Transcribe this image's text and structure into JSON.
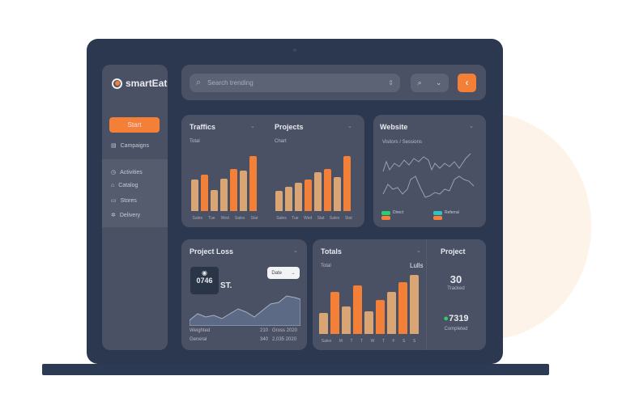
{
  "app": {
    "name": "smartEat"
  },
  "sidebar": {
    "start": "Start",
    "items": [
      {
        "label": "Campaigns",
        "icon": "calendar-icon"
      },
      {
        "label": "Activities",
        "icon": "clock-icon"
      },
      {
        "label": "Catalog",
        "icon": "home-icon"
      },
      {
        "label": "Stores",
        "icon": "store-icon"
      },
      {
        "label": "Delivery",
        "icon": "settings-icon"
      }
    ]
  },
  "topbar": {
    "search_placeholder": "Search trending"
  },
  "cards": {
    "traffic": {
      "title": "Traffics",
      "sub": "Total",
      "ticks": [
        "Sales",
        "Tue",
        "Wed",
        "Sales",
        "Stat"
      ],
      "values": [
        100,
        117,
        68,
        103,
        134,
        128,
        176
      ],
      "hi": [
        false,
        true,
        false,
        false,
        true,
        false,
        true
      ]
    },
    "projects": {
      "title": "Projects",
      "sub": "Chart",
      "ticks": [
        "Sales",
        "Tue",
        "Wed",
        "Stat",
        "Sales",
        "Stat"
      ],
      "values": [
        74,
        89,
        106,
        117,
        143,
        155,
        127,
        205
      ],
      "hi": [
        false,
        false,
        false,
        true,
        false,
        true,
        false,
        true
      ]
    },
    "website": {
      "title": "Website",
      "sub": "Visitors / Sessions",
      "legend": [
        "Direct",
        "Referral"
      ]
    },
    "project_loss": {
      "title": "Project Loss",
      "stat": "0746",
      "stat_suffix": "ST.",
      "button": "Date",
      "rows": [
        [
          "Weighted",
          "210",
          "Gross 2020"
        ],
        [
          "General",
          "340",
          "2,035 2020"
        ]
      ]
    },
    "totals": {
      "title": "Totals",
      "sub": "Total",
      "label": "Lulls",
      "ticks": [
        "Sales",
        "M",
        "T",
        "T",
        "W",
        "T",
        "F",
        "S",
        "S"
      ],
      "values": [
        75,
        152,
        100,
        175,
        82,
        122,
        152,
        187,
        213
      ],
      "hi": [
        false,
        true,
        false,
        true,
        false,
        true,
        false,
        true,
        false
      ]
    },
    "project": {
      "title": "Project",
      "value1": "30",
      "label1": "Tracked",
      "value2": "7319",
      "label2": "Completed"
    }
  },
  "colors": {
    "orange": "#f47f36",
    "tan": "#d9a574",
    "green": "#2ecc71",
    "teal": "#2ec4c4"
  }
}
